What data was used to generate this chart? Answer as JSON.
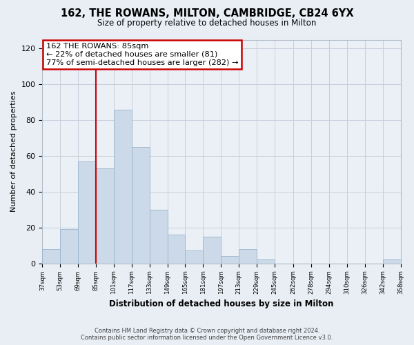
{
  "title": "162, THE ROWANS, MILTON, CAMBRIDGE, CB24 6YX",
  "subtitle": "Size of property relative to detached houses in Milton",
  "xlabel": "Distribution of detached houses by size in Milton",
  "ylabel": "Number of detached properties",
  "bar_color": "#ccd9e8",
  "bar_edge_color": "#9ab4cc",
  "vline_x": 85,
  "vline_color": "#cc0000",
  "annotation_title": "162 THE ROWANS: 85sqm",
  "annotation_line1": "← 22% of detached houses are smaller (81)",
  "annotation_line2": "77% of semi-detached houses are larger (282) →",
  "annotation_box_color": "#ffffff",
  "annotation_box_edge": "#cc0000",
  "bin_edges": [
    37,
    53,
    69,
    85,
    101,
    117,
    133,
    149,
    165,
    181,
    197,
    213,
    229,
    245,
    262,
    278,
    294,
    310,
    326,
    342,
    358
  ],
  "bar_heights": [
    8,
    19,
    57,
    53,
    86,
    65,
    30,
    16,
    7,
    15,
    4,
    8,
    2,
    0,
    0,
    0,
    0,
    0,
    0,
    2
  ],
  "ylim": [
    0,
    125
  ],
  "yticks": [
    0,
    20,
    40,
    60,
    80,
    100,
    120
  ],
  "tick_labels": [
    "37sqm",
    "53sqm",
    "69sqm",
    "85sqm",
    "101sqm",
    "117sqm",
    "133sqm",
    "149sqm",
    "165sqm",
    "181sqm",
    "197sqm",
    "213sqm",
    "229sqm",
    "245sqm",
    "262sqm",
    "278sqm",
    "294sqm",
    "310sqm",
    "326sqm",
    "342sqm",
    "358sqm"
  ],
  "footer1": "Contains HM Land Registry data © Crown copyright and database right 2024.",
  "footer2": "Contains public sector information licensed under the Open Government Licence v3.0.",
  "background_color": "#e8eef4",
  "plot_bg_color": "#eaf0f6",
  "grid_color": "#c5d0dc"
}
